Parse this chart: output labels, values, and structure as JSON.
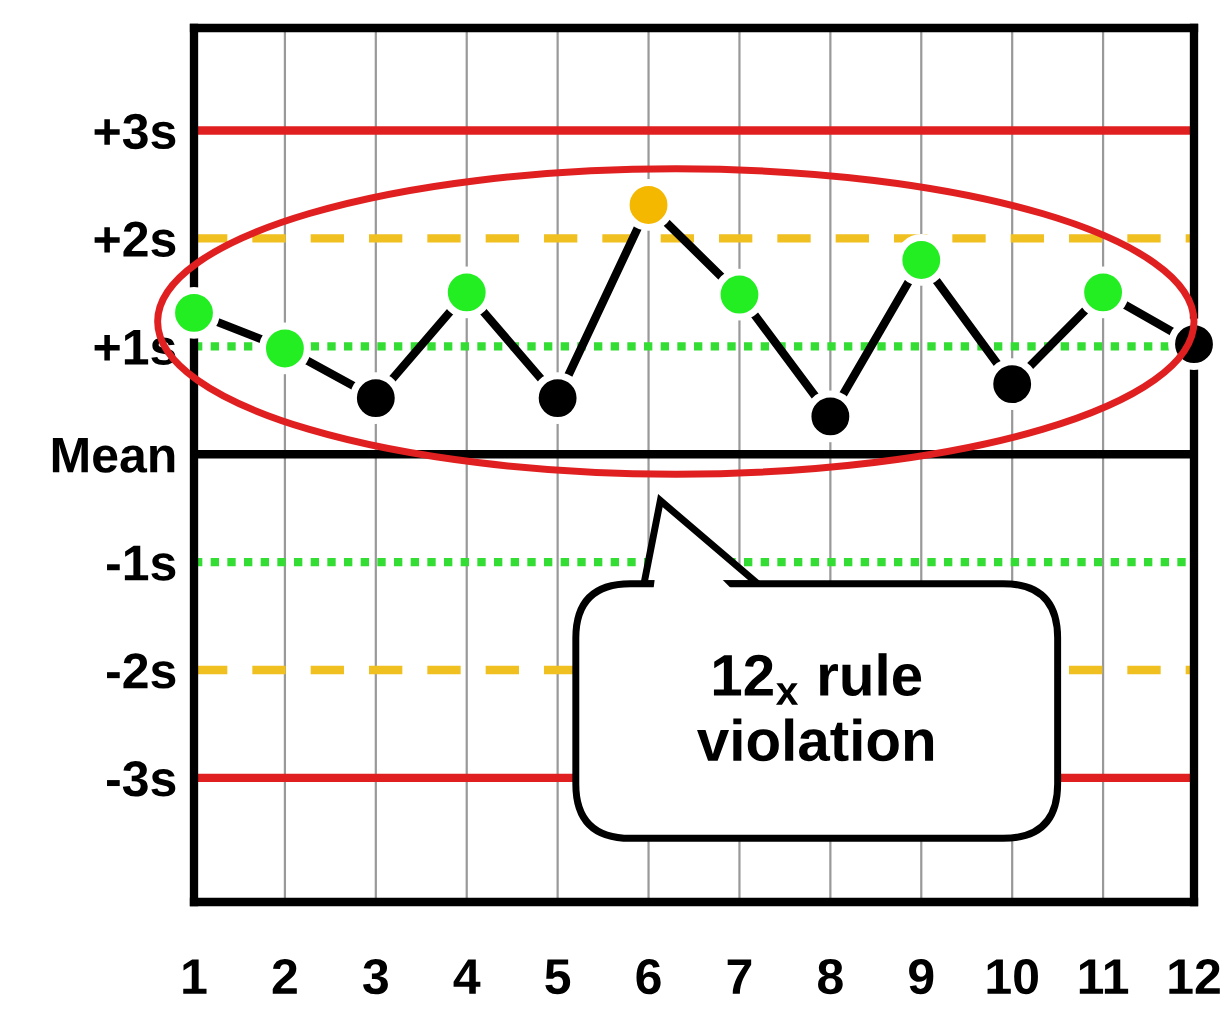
{
  "chart_data": {
    "type": "line",
    "categories": [
      "1",
      "2",
      "3",
      "4",
      "5",
      "6",
      "7",
      "8",
      "9",
      "10",
      "11",
      "12"
    ],
    "series": [
      {
        "color": "#000000",
        "values": [
          1.31,
          0.98,
          0.52,
          1.5,
          0.52,
          2.31,
          1.48,
          0.35,
          1.8,
          0.65,
          1.5,
          1.02
        ],
        "colors": [
          "#22ee22",
          "#22ee22",
          "#000000",
          "#22ee22",
          "#000000",
          "#f5b800",
          "#22ee22",
          "#000000",
          "#22ee22",
          "#000000",
          "#22ee22",
          "#000000"
        ]
      }
    ],
    "marker": "circle",
    "ylim": [
      -4.15,
      3.95
    ],
    "yticks": [
      {
        "value": 3,
        "label": "+3s"
      },
      {
        "value": 2,
        "label": "+2s"
      },
      {
        "value": 1,
        "label": "+1s"
      },
      {
        "value": 0,
        "label": "Mean"
      },
      {
        "value": -1,
        "label": "-1s"
      },
      {
        "value": -2,
        "label": "-2s"
      },
      {
        "value": -3,
        "label": "-3s"
      }
    ],
    "grid": "x",
    "ref_lines": [
      {
        "axis": "y",
        "value": 3,
        "color": "#e02020",
        "line_style": "solid"
      },
      {
        "axis": "y",
        "value": 2,
        "color": "#f0c020",
        "line_style": "dashed"
      },
      {
        "axis": "y",
        "value": 1,
        "color": "#33dd33",
        "line_style": "dotted"
      },
      {
        "axis": "y",
        "value": 0,
        "color": "#000000",
        "line_style": "solid"
      },
      {
        "axis": "y",
        "value": -1,
        "color": "#33dd33",
        "line_style": "dotted"
      },
      {
        "axis": "y",
        "value": -2,
        "color": "#f0c020",
        "line_style": "dashed"
      },
      {
        "axis": "y",
        "value": -3,
        "color": "#e02020",
        "line_style": "solid"
      }
    ],
    "annotations": [
      "12$_{x}$ rule\nviolation"
    ]
  }
}
